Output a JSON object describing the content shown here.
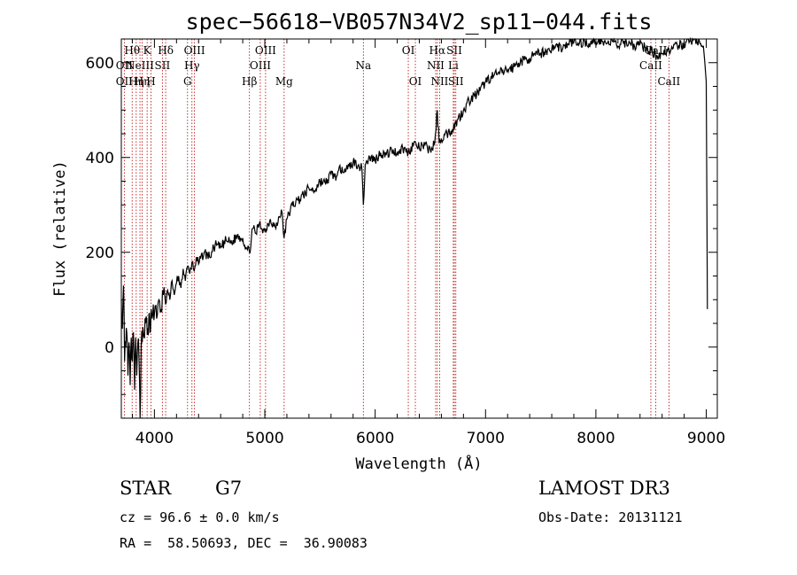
{
  "chart_data": {
    "type": "line",
    "title": "spec−56618−VB057N34V2_sp11−044.fits",
    "xlabel": "Wavelength (Å)",
    "ylabel": "Flux (relative)",
    "xlim": [
      3700,
      9100
    ],
    "ylim": [
      -150,
      650
    ],
    "x_ticks": [
      4000,
      5000,
      6000,
      7000,
      8000,
      9000
    ],
    "y_ticks": [
      0,
      200,
      400,
      600
    ],
    "series": [
      {
        "name": "spectrum",
        "x": [
          3700,
          3710,
          3720,
          3730,
          3740,
          3750,
          3760,
          3770,
          3780,
          3790,
          3800,
          3810,
          3820,
          3830,
          3840,
          3850,
          3860,
          3870,
          3880,
          3890,
          3900,
          3910,
          3920,
          3930,
          3940,
          3950,
          3960,
          3970,
          3980,
          3990,
          4000,
          4020,
          4040,
          4060,
          4080,
          4100,
          4120,
          4140,
          4160,
          4180,
          4200,
          4220,
          4240,
          4260,
          4280,
          4300,
          4320,
          4340,
          4360,
          4380,
          4400,
          4450,
          4500,
          4550,
          4600,
          4650,
          4700,
          4750,
          4800,
          4830,
          4861,
          4890,
          4920,
          4950,
          5000,
          5050,
          5100,
          5150,
          5175,
          5200,
          5250,
          5300,
          5350,
          5400,
          5450,
          5500,
          5550,
          5600,
          5650,
          5700,
          5750,
          5800,
          5850,
          5880,
          5893,
          5910,
          5950,
          6000,
          6050,
          6100,
          6150,
          6200,
          6250,
          6300,
          6350,
          6400,
          6450,
          6500,
          6540,
          6563,
          6580,
          6600,
          6650,
          6700,
          6750,
          6800,
          6850,
          6900,
          6950,
          7000,
          7050,
          7100,
          7150,
          7200,
          7250,
          7300,
          7350,
          7400,
          7450,
          7500,
          7550,
          7600,
          7650,
          7700,
          7750,
          7800,
          7850,
          7900,
          7950,
          8000,
          8050,
          8100,
          8150,
          8200,
          8250,
          8300,
          8350,
          8400,
          8450,
          8500,
          8550,
          8600,
          8650,
          8700,
          8750,
          8800,
          8850,
          8900,
          8950,
          8980,
          9000,
          9010
        ],
        "y": [
          100,
          40,
          130,
          -30,
          0,
          30,
          -60,
          10,
          -80,
          20,
          -30,
          30,
          -90,
          20,
          -60,
          10,
          -20,
          -150,
          0,
          10,
          30,
          20,
          50,
          60,
          40,
          70,
          30,
          80,
          60,
          90,
          70,
          60,
          100,
          80,
          110,
          90,
          120,
          100,
          140,
          110,
          135,
          150,
          125,
          165,
          140,
          170,
          155,
          180,
          160,
          190,
          175,
          200,
          190,
          215,
          210,
          225,
          220,
          235,
          230,
          210,
          200,
          250,
          240,
          260,
          245,
          270,
          250,
          290,
          230,
          270,
          300,
          310,
          320,
          335,
          330,
          350,
          345,
          365,
          360,
          380,
          375,
          390,
          385,
          375,
          300,
          385,
          400,
          395,
          410,
          405,
          415,
          410,
          420,
          410,
          430,
          420,
          425,
          415,
          430,
          500,
          430,
          440,
          450,
          460,
          480,
          500,
          520,
          530,
          540,
          560,
          570,
          575,
          580,
          585,
          590,
          600,
          605,
          610,
          615,
          620,
          625,
          630,
          635,
          630,
          640,
          645,
          640,
          645,
          640,
          645,
          650,
          640,
          645,
          635,
          640,
          645,
          635,
          640,
          630,
          625,
          615,
          620,
          625,
          630,
          635,
          640,
          645,
          650,
          640,
          620,
          560,
          80
        ]
      }
    ],
    "line_markers": [
      {
        "x": 3727,
        "labels": [
          {
            "text": "OII",
            "row": 1
          },
          {
            "text": "OII",
            "row": 2
          }
        ]
      },
      {
        "x": 3798,
        "labels": [
          {
            "text": "Hθ",
            "row": 0
          }
        ]
      },
      {
        "x": 3835,
        "labels": [
          {
            "text": "Hη",
            "row": 2
          }
        ]
      },
      {
        "x": 3869,
        "labels": [
          {
            "text": "NeIII",
            "row": 1
          }
        ]
      },
      {
        "x": 3889,
        "labels": [
          {
            "text": "Hη",
            "row": 2
          }
        ]
      },
      {
        "x": 3934,
        "labels": [
          {
            "text": "K",
            "row": 0
          }
        ]
      },
      {
        "x": 3969,
        "labels": [
          {
            "text": "H",
            "row": 2
          }
        ]
      },
      {
        "x": 4072,
        "labels": [
          {
            "text": "SII",
            "row": 1
          }
        ]
      },
      {
        "x": 4102,
        "labels": [
          {
            "text": "Hδ",
            "row": 0
          }
        ]
      },
      {
        "x": 4300,
        "labels": [
          {
            "text": "G",
            "row": 2
          }
        ]
      },
      {
        "x": 4340,
        "labels": [
          {
            "text": "Hγ",
            "row": 1
          }
        ]
      },
      {
        "x": 4363,
        "labels": [
          {
            "text": "OIII",
            "row": 0
          }
        ]
      },
      {
        "x": 4861,
        "labels": [
          {
            "text": "Hβ",
            "row": 2
          }
        ]
      },
      {
        "x": 4959,
        "labels": [
          {
            "text": "OIII",
            "row": 1
          }
        ]
      },
      {
        "x": 5007,
        "labels": [
          {
            "text": "OIII",
            "row": 0
          }
        ]
      },
      {
        "x": 5175,
        "labels": [
          {
            "text": "Mg",
            "row": 2
          }
        ]
      },
      {
        "x": 5893,
        "labels": [
          {
            "text": "Na",
            "row": 1
          }
        ]
      },
      {
        "x": 6300,
        "labels": [
          {
            "text": "OI",
            "row": 0
          }
        ]
      },
      {
        "x": 6364,
        "labels": [
          {
            "text": "OI",
            "row": 2
          }
        ]
      },
      {
        "x": 6548,
        "labels": [
          {
            "text": "NII",
            "row": 1
          }
        ]
      },
      {
        "x": 6563,
        "labels": [
          {
            "text": "Hα",
            "row": 0
          }
        ]
      },
      {
        "x": 6584,
        "labels": [
          {
            "text": "NII",
            "row": 2
          }
        ]
      },
      {
        "x": 6708,
        "labels": [
          {
            "text": "Li",
            "row": 1
          }
        ]
      },
      {
        "x": 6717,
        "labels": [
          {
            "text": "SII",
            "row": 0
          }
        ]
      },
      {
        "x": 6731,
        "labels": [
          {
            "text": "SII",
            "row": 2
          }
        ]
      },
      {
        "x": 8498,
        "labels": [
          {
            "text": "CaII",
            "row": 1
          }
        ]
      },
      {
        "x": 8542,
        "labels": [
          {
            "text": "CaII",
            "row": 0
          }
        ]
      },
      {
        "x": 8662,
        "labels": [
          {
            "text": "CaII",
            "row": 2
          }
        ]
      }
    ]
  },
  "info": {
    "object_class": "STAR",
    "subclass": "G7",
    "survey": "LAMOST DR3",
    "redshift_line": "cz = 96.6 ± 0.0 km/s",
    "obs_date_line": "Obs-Date: 20131121",
    "coords_line": "RA =  58.50693, DEC =  36.90083"
  }
}
